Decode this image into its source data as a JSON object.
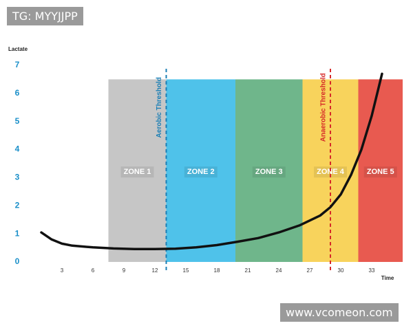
{
  "watermarks": {
    "top": "TG: MYYJJPP",
    "bottom": "www.vcomeon.com"
  },
  "chart_data": {
    "type": "line",
    "y_label": "Lactate",
    "x_label": "Time",
    "x": [
      1,
      2,
      3,
      4,
      6,
      8,
      10,
      12,
      14,
      16,
      18,
      20,
      22,
      24,
      26,
      28,
      29,
      30,
      31,
      32,
      33,
      34
    ],
    "values": [
      1.05,
      0.8,
      0.65,
      0.58,
      0.52,
      0.48,
      0.46,
      0.46,
      0.47,
      0.52,
      0.6,
      0.72,
      0.85,
      1.05,
      1.3,
      1.65,
      1.95,
      2.4,
      3.1,
      4.0,
      5.2,
      6.7
    ],
    "color": "#111111",
    "xlim": [
      0,
      36
    ],
    "ylim": [
      0,
      7
    ],
    "xticks": [
      3,
      6,
      9,
      12,
      15,
      18,
      21,
      24,
      27,
      30,
      33
    ],
    "yticks": [
      0,
      1,
      2,
      3,
      4,
      5,
      6,
      7
    ],
    "zones": [
      {
        "label": "ZONE 1",
        "start": 7.5,
        "end": 13.1,
        "top": 6.5,
        "color": "#c6c6c6"
      },
      {
        "label": "ZONE 2",
        "start": 13.1,
        "end": 19.8,
        "top": 6.5,
        "color": "#4fc2ea"
      },
      {
        "label": "ZONE 3",
        "start": 19.8,
        "end": 26.3,
        "top": 6.5,
        "color": "#6fb68b"
      },
      {
        "label": "ZONE 4",
        "start": 26.3,
        "end": 31.7,
        "top": 6.5,
        "color": "#f8d35c"
      },
      {
        "label": "ZONE 5",
        "start": 31.7,
        "end": 36,
        "top": 6.5,
        "color": "#e85a50"
      }
    ],
    "thresholds": [
      {
        "label": "Aerobic Threshold",
        "x": 13.1,
        "color": "#1b7fb5"
      },
      {
        "label": "Anaerobic Threshold",
        "x": 29,
        "color": "#d62828"
      }
    ]
  }
}
